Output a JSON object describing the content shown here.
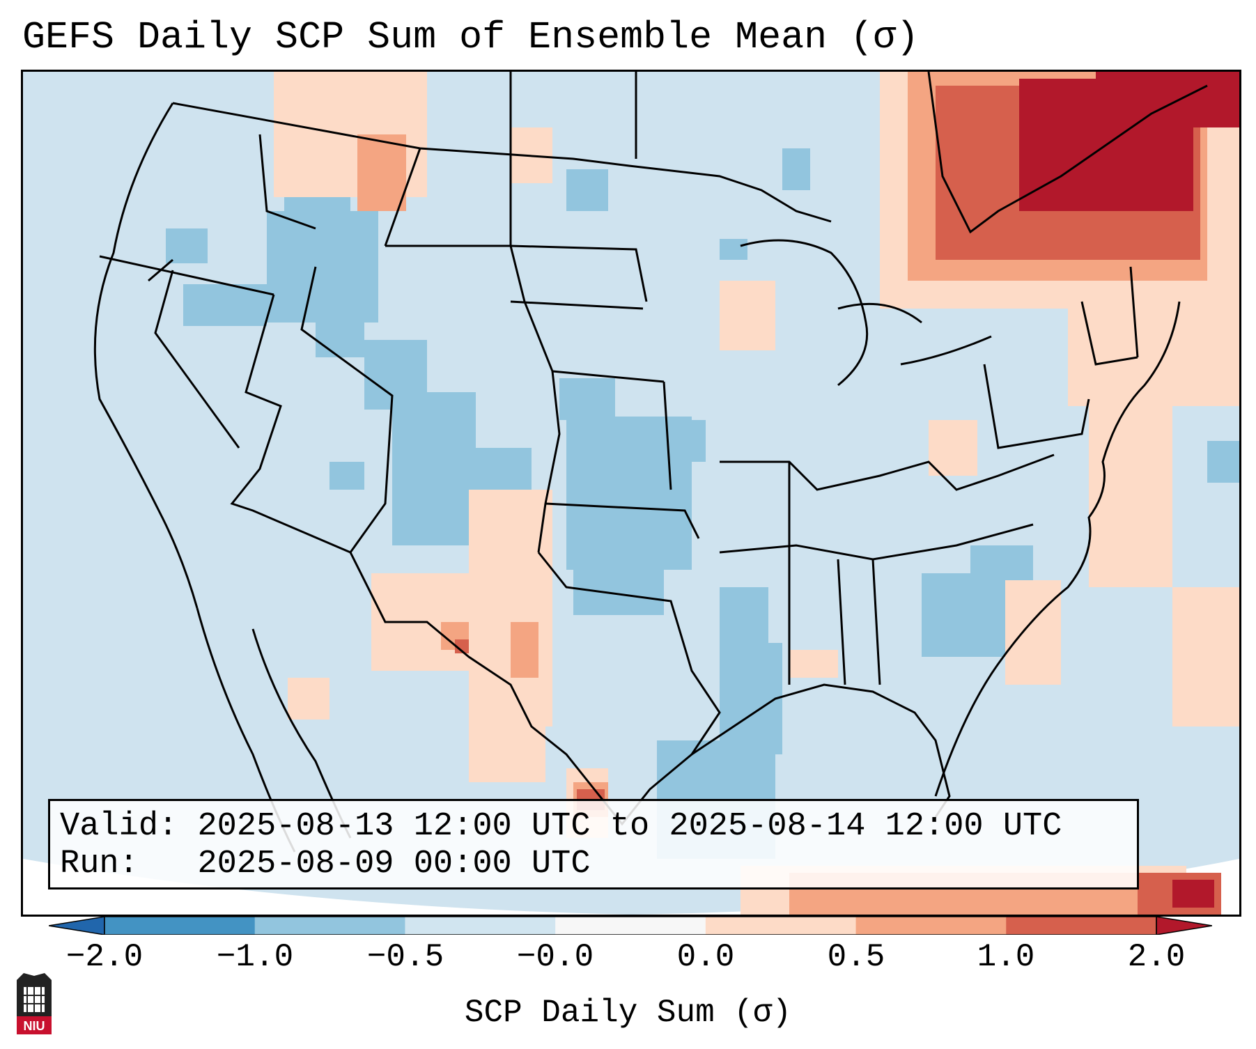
{
  "title": "GEFS Daily SCP Sum of Ensemble Mean (σ)",
  "info": {
    "valid_label": "Valid:",
    "valid_value": "2025-08-13 12:00 UTC to 2025-08-14 12:00 UTC",
    "run_label": "Run:",
    "run_value": "2025-08-09 00:00 UTC"
  },
  "colorbar": {
    "label": "SCP Daily Sum (σ)",
    "ticks": [
      "−2.0",
      "−1.0",
      "−0.5",
      "−0.0",
      "0.0",
      "0.5",
      "1.0",
      "2.0"
    ],
    "bins": [
      {
        "range": "< −2.0",
        "color": "#2166ac"
      },
      {
        "range": "−2.0 to −1.0",
        "color": "#4393c3"
      },
      {
        "range": "−1.0 to −0.5",
        "color": "#92c5de"
      },
      {
        "range": "−0.5 to −0.0",
        "color": "#d1e5f0"
      },
      {
        "range": "−0.0 to 0.0",
        "color": "#f7f7f7"
      },
      {
        "range": "0.0 to 0.5",
        "color": "#fddbc7"
      },
      {
        "range": "0.5 to 1.0",
        "color": "#f4a582"
      },
      {
        "range": "1.0 to 2.0",
        "color": "#d6604d"
      },
      {
        "range": "> 2.0",
        "color": "#b2182b"
      }
    ],
    "extend": "both"
  },
  "map": {
    "region": "Contiguous United States",
    "background_color": "#cfe3ef",
    "dominant_value_range": "−0.5 to −0.0",
    "notable_features": [
      {
        "region": "Southern Quebec / northern New England",
        "range": "1.0 to > 2.0"
      },
      {
        "region": "Central Plains (Nebraska, Kansas)",
        "range": "−1.0 to −0.5"
      },
      {
        "region": "Colorado / Idaho",
        "range": "−1.0 to −0.5"
      },
      {
        "region": "New Mexico / West Texas",
        "range": "0.0 to 1.0"
      },
      {
        "region": "Western Gulf of Mexico",
        "range": "−1.0 to −0.5"
      },
      {
        "region": "Western Atlantic offshore",
        "range": "0.0 to 0.5"
      }
    ]
  },
  "logo_text": "NIU"
}
